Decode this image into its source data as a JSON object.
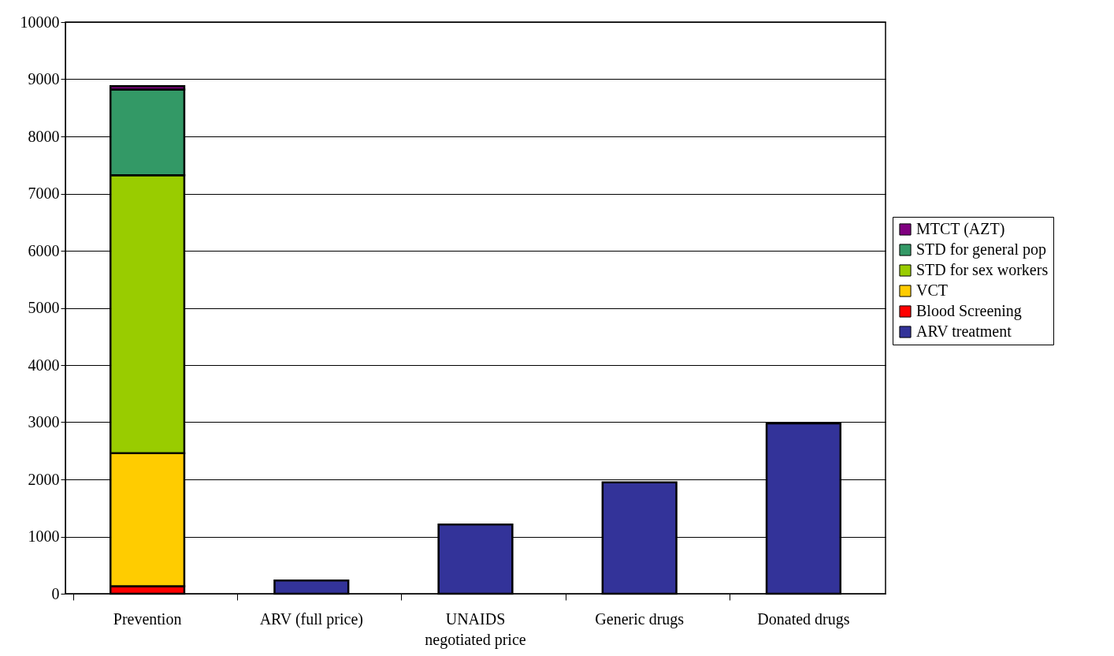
{
  "chart_data": {
    "type": "bar",
    "stacked": true,
    "categories": [
      "Prevention",
      "ARV (full price)",
      "UNAIDS negotiated price",
      "Generic drugs",
      "Donated drugs"
    ],
    "series": [
      {
        "name": "ARV treatment",
        "color": "#333399",
        "values": [
          null,
          230,
          1210,
          1950,
          2980
        ]
      },
      {
        "name": "Blood Screening",
        "color": "#ff0000",
        "values": [
          130,
          null,
          null,
          null,
          null
        ]
      },
      {
        "name": "VCT",
        "color": "#ffcc00",
        "values": [
          2330,
          null,
          null,
          null,
          null
        ]
      },
      {
        "name": "STD for sex workers",
        "color": "#99cc00",
        "values": [
          4860,
          null,
          null,
          null,
          null
        ]
      },
      {
        "name": "STD for general pop",
        "color": "#339966",
        "values": [
          1500,
          null,
          null,
          null,
          null
        ]
      },
      {
        "name": "MTCT (AZT)",
        "color": "#800080",
        "values": [
          60,
          null,
          null,
          null,
          null
        ]
      }
    ],
    "ylim": [
      0,
      10000
    ],
    "yticks": [
      0,
      1000,
      2000,
      3000,
      4000,
      5000,
      6000,
      7000,
      8000,
      9000,
      10000
    ],
    "grid": "y",
    "legend": "right"
  }
}
